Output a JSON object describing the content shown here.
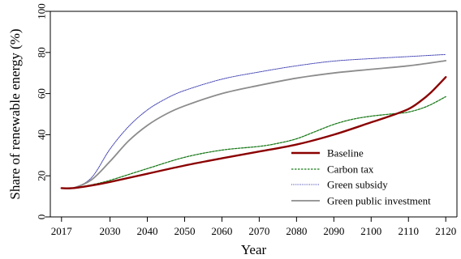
{
  "chart_data": {
    "type": "line",
    "xlabel": "Year",
    "ylabel": "Share of renewable energy (%)",
    "xlim": [
      2014,
      2123
    ],
    "ylim": [
      0,
      100
    ],
    "x_ticks": [
      2017,
      2030,
      2040,
      2050,
      2060,
      2070,
      2080,
      2090,
      2100,
      2110,
      2120
    ],
    "y_ticks": [
      0,
      20,
      40,
      60,
      80,
      100
    ],
    "grid": false,
    "legend_position": "bottom-right",
    "series": [
      {
        "name": "Baseline",
        "color": "#8b0000",
        "style": "solid",
        "x": [
          2017,
          2020,
          2025,
          2030,
          2040,
          2050,
          2060,
          2070,
          2080,
          2090,
          2100,
          2105,
          2110,
          2113,
          2116,
          2120
        ],
        "y": [
          14,
          14,
          15.3,
          17,
          21,
          25,
          28.5,
          31.8,
          35.2,
          40,
          46,
          49,
          52.5,
          56,
          60.5,
          68
        ]
      },
      {
        "name": "Carbon tax",
        "color": "#1a7a1a",
        "style": "dashed",
        "x": [
          2017,
          2020,
          2025,
          2030,
          2040,
          2050,
          2060,
          2070,
          2075,
          2080,
          2085,
          2090,
          2095,
          2100,
          2105,
          2110,
          2115,
          2120
        ],
        "y": [
          14,
          14,
          15.6,
          17.8,
          23.5,
          29,
          32.5,
          34.3,
          35.8,
          38,
          41.5,
          45,
          47.5,
          49,
          50,
          51,
          53.8,
          58.5
        ]
      },
      {
        "name": "Green subsidy",
        "color": "#3a3ab0",
        "style": "dotted",
        "x": [
          2017,
          2020,
          2025,
          2030,
          2035,
          2040,
          2045,
          2050,
          2060,
          2070,
          2080,
          2090,
          2100,
          2110,
          2120
        ],
        "y": [
          14,
          14,
          19,
          33,
          44,
          52,
          57.5,
          61.5,
          67,
          70.5,
          73.5,
          75.8,
          77,
          78,
          79
        ]
      },
      {
        "name": "Green public investment",
        "color": "#8c8c8c",
        "style": "solid",
        "x": [
          2017,
          2020,
          2025,
          2030,
          2035,
          2040,
          2045,
          2050,
          2060,
          2070,
          2080,
          2090,
          2100,
          2110,
          2120
        ],
        "y": [
          14,
          14,
          18,
          27,
          37,
          44.5,
          50,
          54,
          60,
          64,
          67.5,
          70,
          71.8,
          73.5,
          76
        ]
      }
    ]
  }
}
